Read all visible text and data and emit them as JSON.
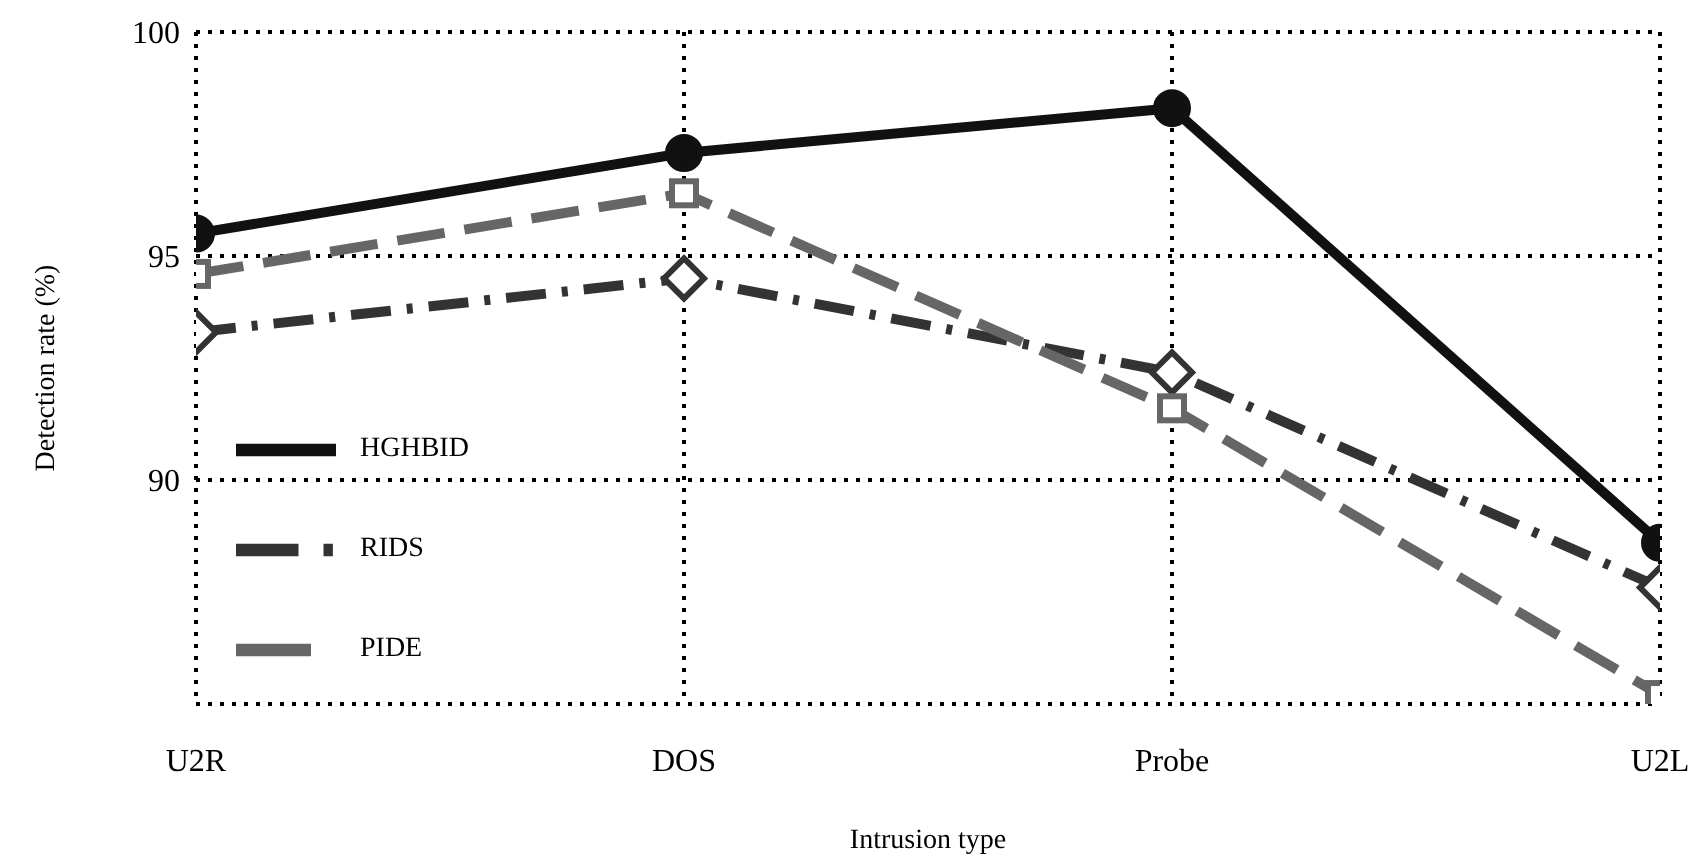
{
  "chart_data": {
    "type": "line",
    "xlabel": "Intrusion type",
    "ylabel": "Detection rate (%)",
    "categories": [
      "U2R",
      "DOS",
      "Probe",
      "U2L"
    ],
    "ylim": [
      85,
      100
    ],
    "yticks": [
      90,
      95,
      100
    ],
    "grid": true,
    "legend": "left",
    "series": [
      {
        "name": "HGHBID",
        "color": "#111111",
        "values": [
          95.5,
          97.3,
          98.3,
          88.6
        ],
        "marker": "circle",
        "line_style": "solid"
      },
      {
        "name": "RIDS",
        "color": "#333333",
        "values": [
          93.3,
          94.5,
          92.4,
          87.6
        ],
        "marker": "diamond",
        "line_style": "dashdot"
      },
      {
        "name": "PIDE",
        "color": "#666666",
        "values": [
          94.6,
          96.4,
          91.6,
          85.2
        ],
        "marker": "square",
        "line_style": "dashed"
      }
    ]
  }
}
